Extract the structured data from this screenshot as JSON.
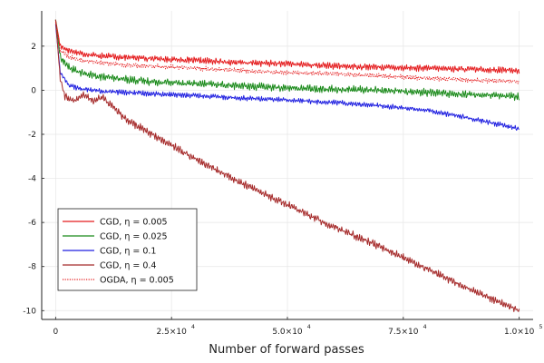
{
  "chart_data": {
    "type": "line",
    "title": "",
    "xlabel": "Number of forward passes",
    "ylabel": "",
    "xlim": [
      -3000,
      103000
    ],
    "ylim": [
      -10.4,
      3.6
    ],
    "x_ticks": [
      {
        "value": 0,
        "mantissa": "0",
        "exponent": ""
      },
      {
        "value": 25000,
        "mantissa": "2.5×10",
        "exponent": "4"
      },
      {
        "value": 50000,
        "mantissa": "5.0×10",
        "exponent": "4"
      },
      {
        "value": 75000,
        "mantissa": "7.5×10",
        "exponent": "4"
      },
      {
        "value": 100000,
        "mantissa": "1.0×10",
        "exponent": "5"
      }
    ],
    "y_ticks": [
      {
        "value": 2,
        "label": "2"
      },
      {
        "value": 0,
        "label": "0"
      },
      {
        "value": -2,
        "label": "-2"
      },
      {
        "value": -4,
        "label": "-4"
      },
      {
        "value": -6,
        "label": "-6"
      },
      {
        "value": -8,
        "label": "-8"
      },
      {
        "value": -10,
        "label": "-10"
      }
    ],
    "grid": true,
    "legend_position": "bottom-left",
    "series": [
      {
        "name": "CGD,  η = 0.005",
        "color": "#e41a1c",
        "dash": "solid",
        "x": [
          0,
          1000,
          3000,
          6000,
          10000,
          15000,
          20000,
          30000,
          40000,
          50000,
          60000,
          70000,
          80000,
          90000,
          100000
        ],
        "y": [
          3.2,
          2.0,
          1.8,
          1.65,
          1.55,
          1.5,
          1.45,
          1.35,
          1.25,
          1.2,
          1.1,
          1.05,
          1.0,
          0.95,
          0.9
        ],
        "noise": 0.1
      },
      {
        "name": "CGD,  η = 0.025",
        "color": "#1a8a1a",
        "dash": "solid",
        "x": [
          0,
          1000,
          3000,
          6000,
          10000,
          15000,
          20000,
          30000,
          40000,
          50000,
          60000,
          70000,
          80000,
          90000,
          100000
        ],
        "y": [
          3.2,
          1.5,
          1.0,
          0.75,
          0.6,
          0.5,
          0.4,
          0.3,
          0.2,
          0.1,
          0.05,
          0.0,
          -0.1,
          -0.2,
          -0.3
        ],
        "noise": 0.12
      },
      {
        "name": "CGD,  η = 0.1",
        "color": "#1f1fe0",
        "dash": "solid",
        "x": [
          0,
          1000,
          3000,
          6000,
          10000,
          15000,
          20000,
          30000,
          40000,
          50000,
          60000,
          70000,
          80000,
          90000,
          100000
        ],
        "y": [
          3.0,
          0.8,
          0.2,
          0.05,
          -0.05,
          -0.1,
          -0.15,
          -0.25,
          -0.35,
          -0.45,
          -0.55,
          -0.7,
          -0.9,
          -1.3,
          -1.75
        ],
        "noise": 0.08
      },
      {
        "name": "CGD,  η = 0.4",
        "color": "#a52a2a",
        "dash": "solid",
        "x": [
          0,
          1000,
          2000,
          4000,
          6000,
          8000,
          10000,
          15000,
          20000,
          30000,
          40000,
          50000,
          60000,
          70000,
          80000,
          90000,
          100000
        ],
        "y": [
          3.2,
          0.5,
          -0.3,
          -0.5,
          -0.2,
          -0.5,
          -0.3,
          -1.3,
          -1.9,
          -3.1,
          -4.2,
          -5.2,
          -6.2,
          -7.1,
          -8.1,
          -9.1,
          -10.0
        ],
        "noise": 0.12
      },
      {
        "name": "OGDA,  η = 0.005",
        "color": "#e41a1c",
        "dash": "dotted",
        "x": [
          0,
          1000,
          3000,
          6000,
          10000,
          15000,
          20000,
          30000,
          40000,
          50000,
          60000,
          70000,
          80000,
          90000,
          100000
        ],
        "y": [
          3.1,
          1.8,
          1.5,
          1.35,
          1.25,
          1.15,
          1.1,
          1.0,
          0.9,
          0.8,
          0.75,
          0.65,
          0.55,
          0.45,
          0.4
        ],
        "noise": 0.07
      }
    ]
  },
  "legend": {
    "entries": [
      {
        "label": "CGD,  η = 0.005",
        "color": "#e41a1c",
        "dash": "solid"
      },
      {
        "label": "CGD,  η = 0.025",
        "color": "#1a8a1a",
        "dash": "solid"
      },
      {
        "label": "CGD,  η = 0.1",
        "color": "#1f1fe0",
        "dash": "solid"
      },
      {
        "label": "CGD,  η = 0.4",
        "color": "#a52a2a",
        "dash": "solid"
      },
      {
        "label": "OGDA,  η = 0.005",
        "color": "#e41a1c",
        "dash": "dotted"
      }
    ]
  }
}
